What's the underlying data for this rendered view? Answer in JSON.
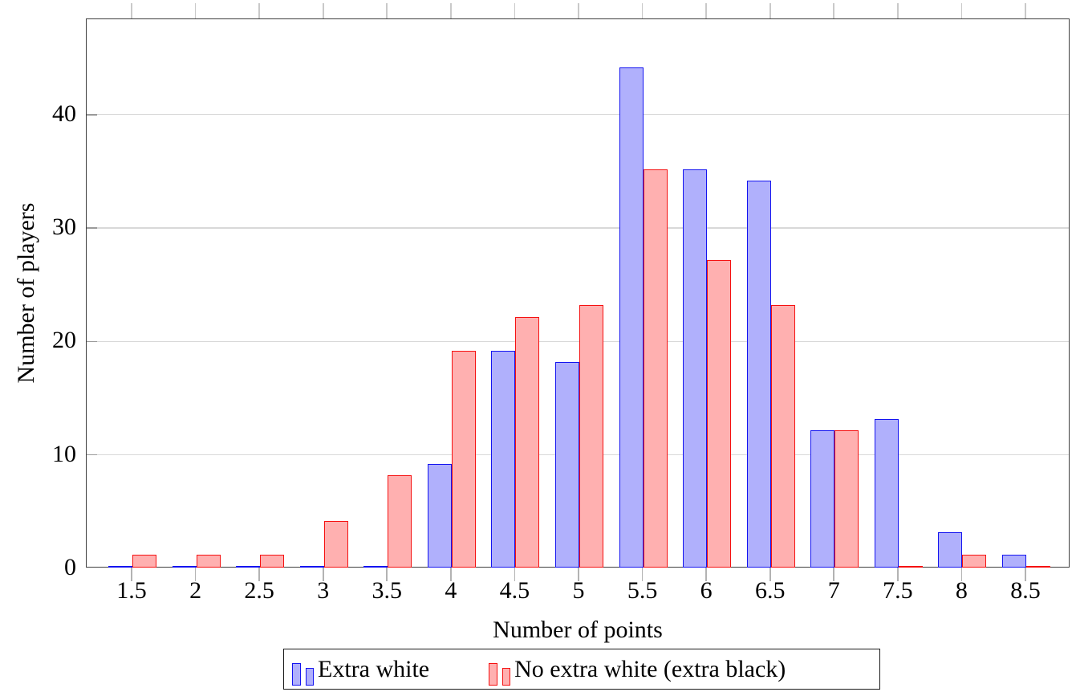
{
  "chart_data": {
    "type": "bar",
    "title": "",
    "xlabel": "Number of points",
    "ylabel": "Number of players",
    "categories": [
      "1.5",
      "2",
      "2.5",
      "3",
      "3.5",
      "4",
      "4.5",
      "5",
      "5.5",
      "6",
      "6.5",
      "7",
      "7.5",
      "8",
      "8.5"
    ],
    "series": [
      {
        "name": "Extra white",
        "values": [
          0,
          0,
          0,
          0,
          0,
          9,
          19,
          18,
          44,
          35,
          34,
          12,
          13,
          3,
          1
        ],
        "fill": "#b0b0fc",
        "stroke": "#1414f0"
      },
      {
        "name": "No extra white (extra black)",
        "values": [
          1,
          1,
          1,
          4,
          8,
          19,
          22,
          23,
          35,
          27,
          23,
          12,
          0,
          1,
          0
        ],
        "fill": "#ffb0b0",
        "stroke": "#f51111"
      }
    ],
    "yticks": [
      "0",
      "10",
      "20",
      "30",
      "40"
    ],
    "ylim": [
      0,
      48.4
    ],
    "grid": "horizontal-major",
    "gridline_color": "#d8d8d8",
    "frame_color": "#3f3f3f",
    "legend_position": "below-chart-boxed"
  },
  "axes": {
    "xlabel": "Number of points",
    "ylabel": "Number of players"
  },
  "legend": {
    "entries": [
      {
        "label": "Extra white"
      },
      {
        "label": "No extra white (extra black)"
      }
    ]
  }
}
